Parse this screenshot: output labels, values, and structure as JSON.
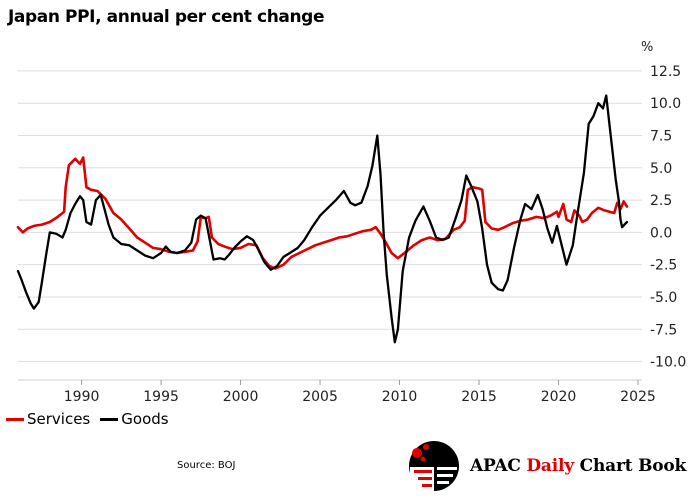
{
  "title": "Japan PPI, annual per cent change",
  "source": "Source: BOJ",
  "brand": {
    "part1": "APAC",
    "part2": "Daily",
    "part3": "Chart Book",
    "accent_color": "#e00000"
  },
  "legend": [
    {
      "label": "Services",
      "color": "#e00000"
    },
    {
      "label": "Goods",
      "color": "#000000"
    }
  ],
  "chart_data": {
    "type": "line",
    "title": "Japan PPI, annual per cent change",
    "ylabel": "%",
    "y_axis_side": "right",
    "xlim": [
      1986,
      2025
    ],
    "ylim": [
      -10.5,
      13.5
    ],
    "xticks": [
      1990,
      1995,
      2000,
      2005,
      2010,
      2015,
      2020,
      2025
    ],
    "yticks": [
      12.5,
      10.0,
      7.5,
      5.0,
      2.5,
      0.0,
      -2.5,
      -5.0,
      -7.5,
      -10.0
    ],
    "ytick_labels": [
      "12.5",
      "10.0",
      "7.5",
      "5.0",
      "2.5",
      "0.0",
      "-2.5",
      "-5.0",
      "-7.5",
      "-10.0"
    ],
    "grid": "horizontal",
    "series": [
      {
        "name": "Services",
        "color": "#e00000",
        "points": [
          [
            1986.0,
            0.4
          ],
          [
            1986.3,
            0.0
          ],
          [
            1986.6,
            0.3
          ],
          [
            1987.0,
            0.5
          ],
          [
            1987.5,
            0.6
          ],
          [
            1988.0,
            0.8
          ],
          [
            1988.5,
            1.2
          ],
          [
            1988.9,
            1.6
          ],
          [
            1989.0,
            3.5
          ],
          [
            1989.2,
            5.2
          ],
          [
            1989.6,
            5.7
          ],
          [
            1989.9,
            5.3
          ],
          [
            1990.1,
            5.8
          ],
          [
            1990.3,
            3.5
          ],
          [
            1990.6,
            3.3
          ],
          [
            1991.0,
            3.2
          ],
          [
            1991.5,
            2.6
          ],
          [
            1992.0,
            1.5
          ],
          [
            1992.5,
            1.0
          ],
          [
            1993.0,
            0.3
          ],
          [
            1993.5,
            -0.4
          ],
          [
            1994.0,
            -0.8
          ],
          [
            1994.5,
            -1.2
          ],
          [
            1995.0,
            -1.3
          ],
          [
            1995.5,
            -1.5
          ],
          [
            1996.0,
            -1.6
          ],
          [
            1996.5,
            -1.5
          ],
          [
            1997.0,
            -1.4
          ],
          [
            1997.3,
            -0.7
          ],
          [
            1997.5,
            1.2
          ],
          [
            1997.8,
            1.1
          ],
          [
            1998.0,
            1.2
          ],
          [
            1998.2,
            -0.4
          ],
          [
            1998.6,
            -0.9
          ],
          [
            1999.0,
            -1.1
          ],
          [
            1999.5,
            -1.3
          ],
          [
            2000.0,
            -1.2
          ],
          [
            2000.5,
            -0.9
          ],
          [
            2001.0,
            -1.0
          ],
          [
            2001.4,
            -2.0
          ],
          [
            2001.8,
            -2.6
          ],
          [
            2002.2,
            -2.8
          ],
          [
            2002.7,
            -2.5
          ],
          [
            2003.2,
            -1.9
          ],
          [
            2003.7,
            -1.6
          ],
          [
            2004.2,
            -1.3
          ],
          [
            2004.7,
            -1.0
          ],
          [
            2005.2,
            -0.8
          ],
          [
            2005.7,
            -0.6
          ],
          [
            2006.2,
            -0.4
          ],
          [
            2006.7,
            -0.3
          ],
          [
            2007.2,
            -0.1
          ],
          [
            2007.7,
            0.1
          ],
          [
            2008.2,
            0.2
          ],
          [
            2008.5,
            0.4
          ],
          [
            2008.8,
            -0.1
          ],
          [
            2009.1,
            -0.7
          ],
          [
            2009.5,
            -1.6
          ],
          [
            2009.9,
            -2.0
          ],
          [
            2010.4,
            -1.5
          ],
          [
            2010.9,
            -1.0
          ],
          [
            2011.4,
            -0.6
          ],
          [
            2011.9,
            -0.4
          ],
          [
            2012.4,
            -0.6
          ],
          [
            2012.9,
            -0.5
          ],
          [
            2013.4,
            0.2
          ],
          [
            2013.8,
            0.4
          ],
          [
            2014.1,
            0.9
          ],
          [
            2014.3,
            3.3
          ],
          [
            2014.6,
            3.5
          ],
          [
            2015.0,
            3.4
          ],
          [
            2015.2,
            3.3
          ],
          [
            2015.4,
            0.8
          ],
          [
            2015.8,
            0.3
          ],
          [
            2016.2,
            0.2
          ],
          [
            2016.6,
            0.4
          ],
          [
            2017.1,
            0.7
          ],
          [
            2017.6,
            0.9
          ],
          [
            2018.1,
            1.0
          ],
          [
            2018.6,
            1.2
          ],
          [
            2019.1,
            1.1
          ],
          [
            2019.5,
            1.3
          ],
          [
            2019.9,
            1.6
          ],
          [
            2020.0,
            1.2
          ],
          [
            2020.3,
            2.2
          ],
          [
            2020.5,
            1.0
          ],
          [
            2020.8,
            0.8
          ],
          [
            2021.0,
            1.7
          ],
          [
            2021.3,
            1.3
          ],
          [
            2021.5,
            0.8
          ],
          [
            2021.8,
            1.0
          ],
          [
            2022.1,
            1.5
          ],
          [
            2022.5,
            1.9
          ],
          [
            2022.9,
            1.7
          ],
          [
            2023.2,
            1.6
          ],
          [
            2023.5,
            1.5
          ],
          [
            2023.7,
            2.3
          ],
          [
            2023.9,
            1.8
          ],
          [
            2024.1,
            2.4
          ],
          [
            2024.3,
            2.0
          ]
        ]
      },
      {
        "name": "Goods",
        "color": "#000000",
        "points": [
          [
            1986.0,
            -3.0
          ],
          [
            1986.2,
            -3.6
          ],
          [
            1986.5,
            -4.6
          ],
          [
            1986.8,
            -5.5
          ],
          [
            1987.0,
            -5.9
          ],
          [
            1987.3,
            -5.4
          ],
          [
            1987.5,
            -3.9
          ],
          [
            1987.8,
            -1.5
          ],
          [
            1988.0,
            0.0
          ],
          [
            1988.4,
            -0.1
          ],
          [
            1988.8,
            -0.4
          ],
          [
            1989.0,
            0.2
          ],
          [
            1989.3,
            1.5
          ],
          [
            1989.6,
            2.2
          ],
          [
            1989.9,
            2.8
          ],
          [
            1990.1,
            2.5
          ],
          [
            1990.3,
            0.8
          ],
          [
            1990.6,
            0.6
          ],
          [
            1990.9,
            2.5
          ],
          [
            1991.2,
            2.9
          ],
          [
            1991.4,
            2.0
          ],
          [
            1991.7,
            0.6
          ],
          [
            1992.0,
            -0.4
          ],
          [
            1992.5,
            -0.9
          ],
          [
            1993.0,
            -1.0
          ],
          [
            1993.5,
            -1.4
          ],
          [
            1994.0,
            -1.8
          ],
          [
            1994.5,
            -2.0
          ],
          [
            1995.0,
            -1.6
          ],
          [
            1995.3,
            -1.1
          ],
          [
            1995.6,
            -1.5
          ],
          [
            1996.0,
            -1.6
          ],
          [
            1996.5,
            -1.4
          ],
          [
            1996.9,
            -0.8
          ],
          [
            1997.2,
            1.0
          ],
          [
            1997.5,
            1.3
          ],
          [
            1997.8,
            1.1
          ],
          [
            1998.0,
            -0.2
          ],
          [
            1998.3,
            -2.1
          ],
          [
            1998.7,
            -2.0
          ],
          [
            1999.0,
            -2.1
          ],
          [
            1999.3,
            -1.7
          ],
          [
            1999.6,
            -1.2
          ],
          [
            2000.0,
            -0.7
          ],
          [
            2000.4,
            -0.3
          ],
          [
            2000.8,
            -0.6
          ],
          [
            2001.1,
            -1.3
          ],
          [
            2001.5,
            -2.3
          ],
          [
            2001.9,
            -2.9
          ],
          [
            2002.3,
            -2.6
          ],
          [
            2002.7,
            -1.9
          ],
          [
            2003.1,
            -1.6
          ],
          [
            2003.6,
            -1.2
          ],
          [
            2004.0,
            -0.6
          ],
          [
            2004.5,
            0.4
          ],
          [
            2005.0,
            1.3
          ],
          [
            2005.5,
            1.9
          ],
          [
            2006.0,
            2.5
          ],
          [
            2006.5,
            3.2
          ],
          [
            2006.9,
            2.3
          ],
          [
            2007.2,
            2.1
          ],
          [
            2007.6,
            2.3
          ],
          [
            2008.0,
            3.6
          ],
          [
            2008.3,
            5.2
          ],
          [
            2008.6,
            7.5
          ],
          [
            2008.8,
            4.5
          ],
          [
            2009.0,
            0.0
          ],
          [
            2009.2,
            -3.3
          ],
          [
            2009.5,
            -6.6
          ],
          [
            2009.7,
            -8.5
          ],
          [
            2009.9,
            -7.5
          ],
          [
            2010.2,
            -3.0
          ],
          [
            2010.6,
            -0.4
          ],
          [
            2011.0,
            0.9
          ],
          [
            2011.5,
            2.0
          ],
          [
            2011.9,
            0.9
          ],
          [
            2012.3,
            -0.4
          ],
          [
            2012.7,
            -0.6
          ],
          [
            2013.1,
            -0.4
          ],
          [
            2013.5,
            1.0
          ],
          [
            2013.9,
            2.5
          ],
          [
            2014.2,
            4.4
          ],
          [
            2014.5,
            3.6
          ],
          [
            2014.9,
            2.4
          ],
          [
            2015.2,
            0.3
          ],
          [
            2015.5,
            -2.5
          ],
          [
            2015.8,
            -3.9
          ],
          [
            2016.2,
            -4.4
          ],
          [
            2016.5,
            -4.5
          ],
          [
            2016.8,
            -3.7
          ],
          [
            2017.2,
            -1.2
          ],
          [
            2017.6,
            1.0
          ],
          [
            2017.9,
            2.2
          ],
          [
            2018.3,
            1.8
          ],
          [
            2018.7,
            2.9
          ],
          [
            2019.0,
            1.8
          ],
          [
            2019.3,
            0.3
          ],
          [
            2019.6,
            -0.8
          ],
          [
            2019.9,
            0.5
          ],
          [
            2020.2,
            -1.0
          ],
          [
            2020.5,
            -2.5
          ],
          [
            2020.9,
            -1.0
          ],
          [
            2021.2,
            1.5
          ],
          [
            2021.6,
            4.6
          ],
          [
            2021.9,
            8.4
          ],
          [
            2022.2,
            9.0
          ],
          [
            2022.5,
            10.0
          ],
          [
            2022.8,
            9.6
          ],
          [
            2023.0,
            10.6
          ],
          [
            2023.3,
            7.3
          ],
          [
            2023.6,
            4.1
          ],
          [
            2023.8,
            2.4
          ],
          [
            2023.9,
            1.0
          ],
          [
            2024.0,
            0.4
          ],
          [
            2024.3,
            0.8
          ]
        ]
      }
    ]
  }
}
